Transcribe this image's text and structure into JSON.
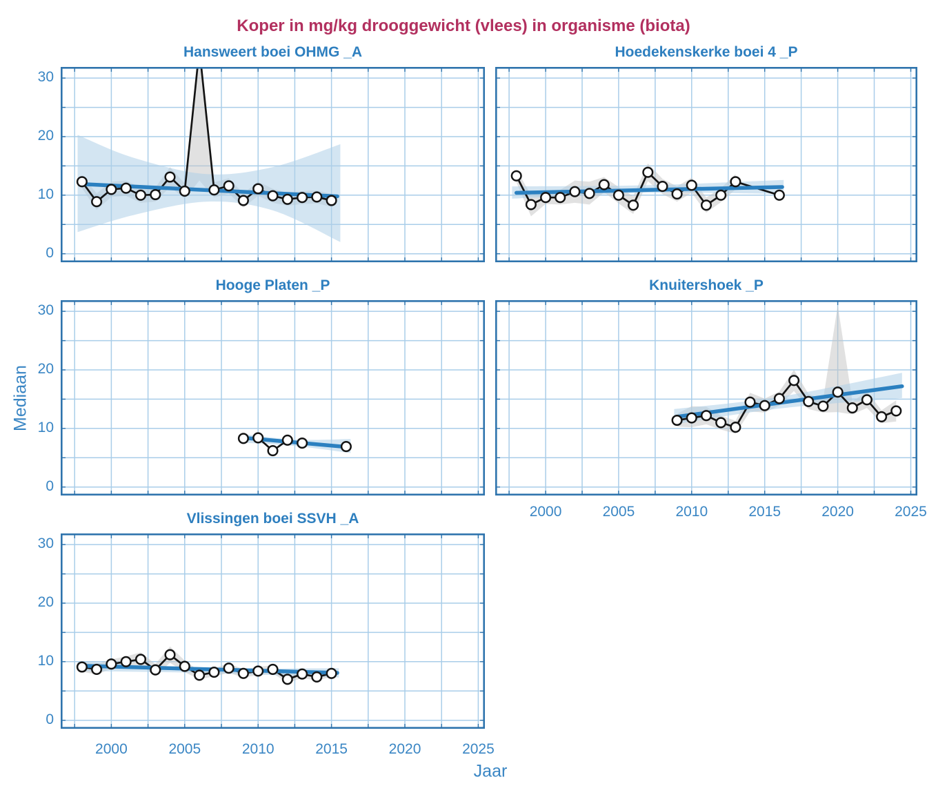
{
  "title": "Koper in mg/kg drooggewicht (vlees) in organisme (biota)",
  "ylabel": "Mediaan",
  "xlabel": "Jaar",
  "colors": {
    "title_color": "#b2305f",
    "panel_title_color": "#2e7fbf",
    "axis_text": "#3a86c4",
    "border": "#2f74ad",
    "grid": "#a9cde9",
    "trend": "#2b80c0",
    "trend_band": "#aecfe8",
    "data_band": "#c3c3c3",
    "data_line": "#141414",
    "marker_fill": "#ffffff"
  },
  "axes": {
    "xlim": [
      1996.55,
      2025.45
    ],
    "ylim": [
      -1.45,
      31.9
    ],
    "xticks": [
      2000,
      2005,
      2010,
      2015,
      2020,
      2025
    ],
    "yticks": [
      0,
      10,
      20,
      30
    ],
    "xminor_start": 1997.5,
    "xminor_step": 2.5,
    "yminor_step": 5
  },
  "chart_data": [
    {
      "type": "line",
      "title": "Hansweert boei OHMG _A",
      "x": [
        1998,
        1999,
        2000,
        2001,
        2002,
        2003,
        2004,
        2005,
        2006,
        2007,
        2008,
        2009,
        2010,
        2011,
        2012,
        2013,
        2014,
        2015
      ],
      "y": [
        12.3,
        8.9,
        11.0,
        11.2,
        10.0,
        10.1,
        13.1,
        10.7,
        35,
        10.9,
        11.6,
        9.1,
        11.1,
        9.9,
        9.3,
        9.6,
        9.7,
        9.1
      ],
      "data_band": {
        "x": [
          1998,
          1999,
          2000,
          2001,
          2002,
          2003,
          2004,
          2005,
          2006,
          2007,
          2008,
          2009,
          2010,
          2011,
          2012,
          2013,
          2014,
          2015
        ],
        "lo": [
          11.2,
          7.5,
          9.7,
          9.9,
          8.7,
          8.9,
          11.4,
          9.4,
          12.5,
          9.6,
          10.3,
          7.9,
          9.9,
          8.7,
          8.2,
          8.5,
          8.6,
          8.0
        ],
        "hi": [
          13.4,
          10.3,
          12.3,
          12.5,
          11.3,
          11.3,
          14.8,
          12.0,
          36.5,
          12.2,
          12.9,
          10.3,
          12.3,
          11.1,
          10.4,
          10.7,
          10.8,
          10.2
        ]
      },
      "trend": {
        "x": [
          1998,
          2015.4
        ],
        "y": [
          11.9,
          9.8
        ]
      },
      "trend_band": {
        "x": [
          1997.7,
          2001.5,
          2006.5,
          2011,
          2015.6
        ],
        "lo": [
          3.7,
          6.6,
          8.9,
          7.4,
          2.0
        ],
        "hi": [
          20.3,
          16.4,
          13.6,
          14.8,
          18.7
        ]
      }
    },
    {
      "type": "line",
      "title": "Hoedekenskerke boei 4 _P",
      "x": [
        1998,
        1999,
        2000,
        2001,
        2002,
        2003,
        2004,
        2005,
        2006,
        2007,
        2008,
        2009,
        2010,
        2011,
        2012,
        2013,
        2016
      ],
      "y": [
        13.3,
        8.4,
        9.6,
        9.6,
        10.6,
        10.3,
        11.8,
        10.0,
        8.3,
        13.9,
        11.5,
        10.2,
        11.7,
        8.3,
        10.0,
        12.3,
        10.0
      ],
      "data_band": {
        "x": [
          1998,
          1999,
          2000,
          2001,
          2002,
          2003,
          2004,
          2005,
          2006,
          2007,
          2008,
          2009,
          2010,
          2011,
          2012,
          2013
        ],
        "lo": [
          12.2,
          6.4,
          8.5,
          8.4,
          8.7,
          8.4,
          10.5,
          8.6,
          6.8,
          12.4,
          10.2,
          8.9,
          10.4,
          7.0,
          8.8,
          11.0
        ],
        "hi": [
          14.4,
          10.0,
          10.7,
          10.9,
          12.5,
          12.3,
          13.1,
          11.4,
          9.8,
          15.4,
          12.8,
          11.5,
          13.0,
          9.6,
          11.2,
          13.6
        ]
      },
      "trend": {
        "x": [
          1998,
          2016.2
        ],
        "y": [
          10.4,
          11.4
        ]
      },
      "trend_band": {
        "x": [
          1997.7,
          2007,
          2016.3
        ],
        "lo": [
          9.4,
          10.4,
          10.2
        ],
        "hi": [
          11.5,
          11.7,
          12.6
        ]
      }
    },
    {
      "type": "line",
      "title": "Hooge Platen _P",
      "x": [
        2009,
        2010,
        2011,
        2012,
        2013,
        2016
      ],
      "y": [
        8.3,
        8.4,
        6.2,
        8.0,
        7.5,
        6.9
      ],
      "data_band": null,
      "trend": {
        "x": [
          2009,
          2016.2
        ],
        "y": [
          8.4,
          6.8
        ]
      },
      "trend_band": {
        "x": [
          2008.8,
          2012.5,
          2016.3
        ],
        "lo": [
          7.6,
          7.0,
          5.8
        ],
        "hi": [
          9.1,
          8.1,
          8.2
        ]
      }
    },
    {
      "type": "line",
      "title": "Knuitershoek _P",
      "x": [
        2009,
        2010,
        2011,
        2012,
        2013,
        2014,
        2015,
        2016,
        2017,
        2018,
        2019,
        2020,
        2021,
        2022,
        2023,
        2024
      ],
      "y": [
        11.4,
        11.8,
        12.2,
        11.0,
        10.2,
        14.5,
        13.9,
        15.1,
        18.2,
        14.6,
        13.8,
        16.2,
        13.5,
        14.9,
        12.0,
        13.0
      ],
      "data_band": {
        "x": [
          2009,
          2010,
          2011,
          2012,
          2013,
          2014,
          2015,
          2016,
          2017,
          2018,
          2019,
          2020,
          2021,
          2022,
          2023,
          2024
        ],
        "lo": [
          10.3,
          10.2,
          10.7,
          9.8,
          9.1,
          12.9,
          12.7,
          13.9,
          16.4,
          13.3,
          12.7,
          12.8,
          12.4,
          13.5,
          10.9,
          11.2
        ],
        "hi": [
          12.5,
          13.8,
          13.7,
          12.2,
          11.3,
          16.1,
          15.1,
          16.3,
          20.0,
          15.9,
          14.9,
          31.0,
          14.6,
          16.3,
          13.1,
          14.8
        ]
      },
      "trend": {
        "x": [
          2009,
          2024.4
        ],
        "y": [
          12.0,
          17.2
        ]
      },
      "trend_band": {
        "x": [
          2008.8,
          2016,
          2024.4
        ],
        "lo": [
          10.7,
          13.4,
          15.2
        ],
        "hi": [
          13.3,
          15.4,
          19.5
        ]
      }
    },
    {
      "type": "line",
      "title": "Vlissingen boei SSVH _A",
      "x": [
        1998,
        1999,
        2000,
        2001,
        2002,
        2003,
        2004,
        2005,
        2006,
        2007,
        2008,
        2009,
        2010,
        2011,
        2012,
        2013,
        2014,
        2015
      ],
      "y": [
        9.1,
        8.7,
        9.6,
        10.0,
        10.4,
        8.6,
        11.2,
        9.2,
        7.7,
        8.2,
        8.9,
        8.0,
        8.4,
        8.7,
        7.0,
        7.9,
        7.4,
        8.0
      ],
      "data_band": {
        "x": [
          1998,
          1999,
          2000,
          2001,
          2002,
          2003,
          2004,
          2005,
          2006,
          2007,
          2008,
          2009,
          2010,
          2011,
          2012,
          2013,
          2014,
          2015
        ],
        "lo": [
          8.3,
          7.8,
          8.8,
          9.1,
          9.4,
          7.6,
          9.8,
          8.2,
          7.0,
          7.5,
          8.1,
          7.3,
          7.7,
          8.0,
          6.4,
          7.2,
          6.8,
          7.4
        ],
        "hi": [
          9.9,
          9.6,
          10.4,
          10.9,
          11.6,
          9.6,
          12.6,
          10.2,
          8.4,
          8.9,
          9.7,
          8.7,
          9.1,
          9.4,
          7.6,
          8.6,
          8.0,
          8.6
        ]
      },
      "trend": {
        "x": [
          1998,
          2015.4
        ],
        "y": [
          9.3,
          8.1
        ]
      },
      "trend_band": {
        "x": [
          1997.7,
          2006,
          2015.5
        ],
        "lo": [
          8.4,
          8.1,
          7.3
        ],
        "hi": [
          10.1,
          8.9,
          8.9
        ]
      }
    }
  ]
}
